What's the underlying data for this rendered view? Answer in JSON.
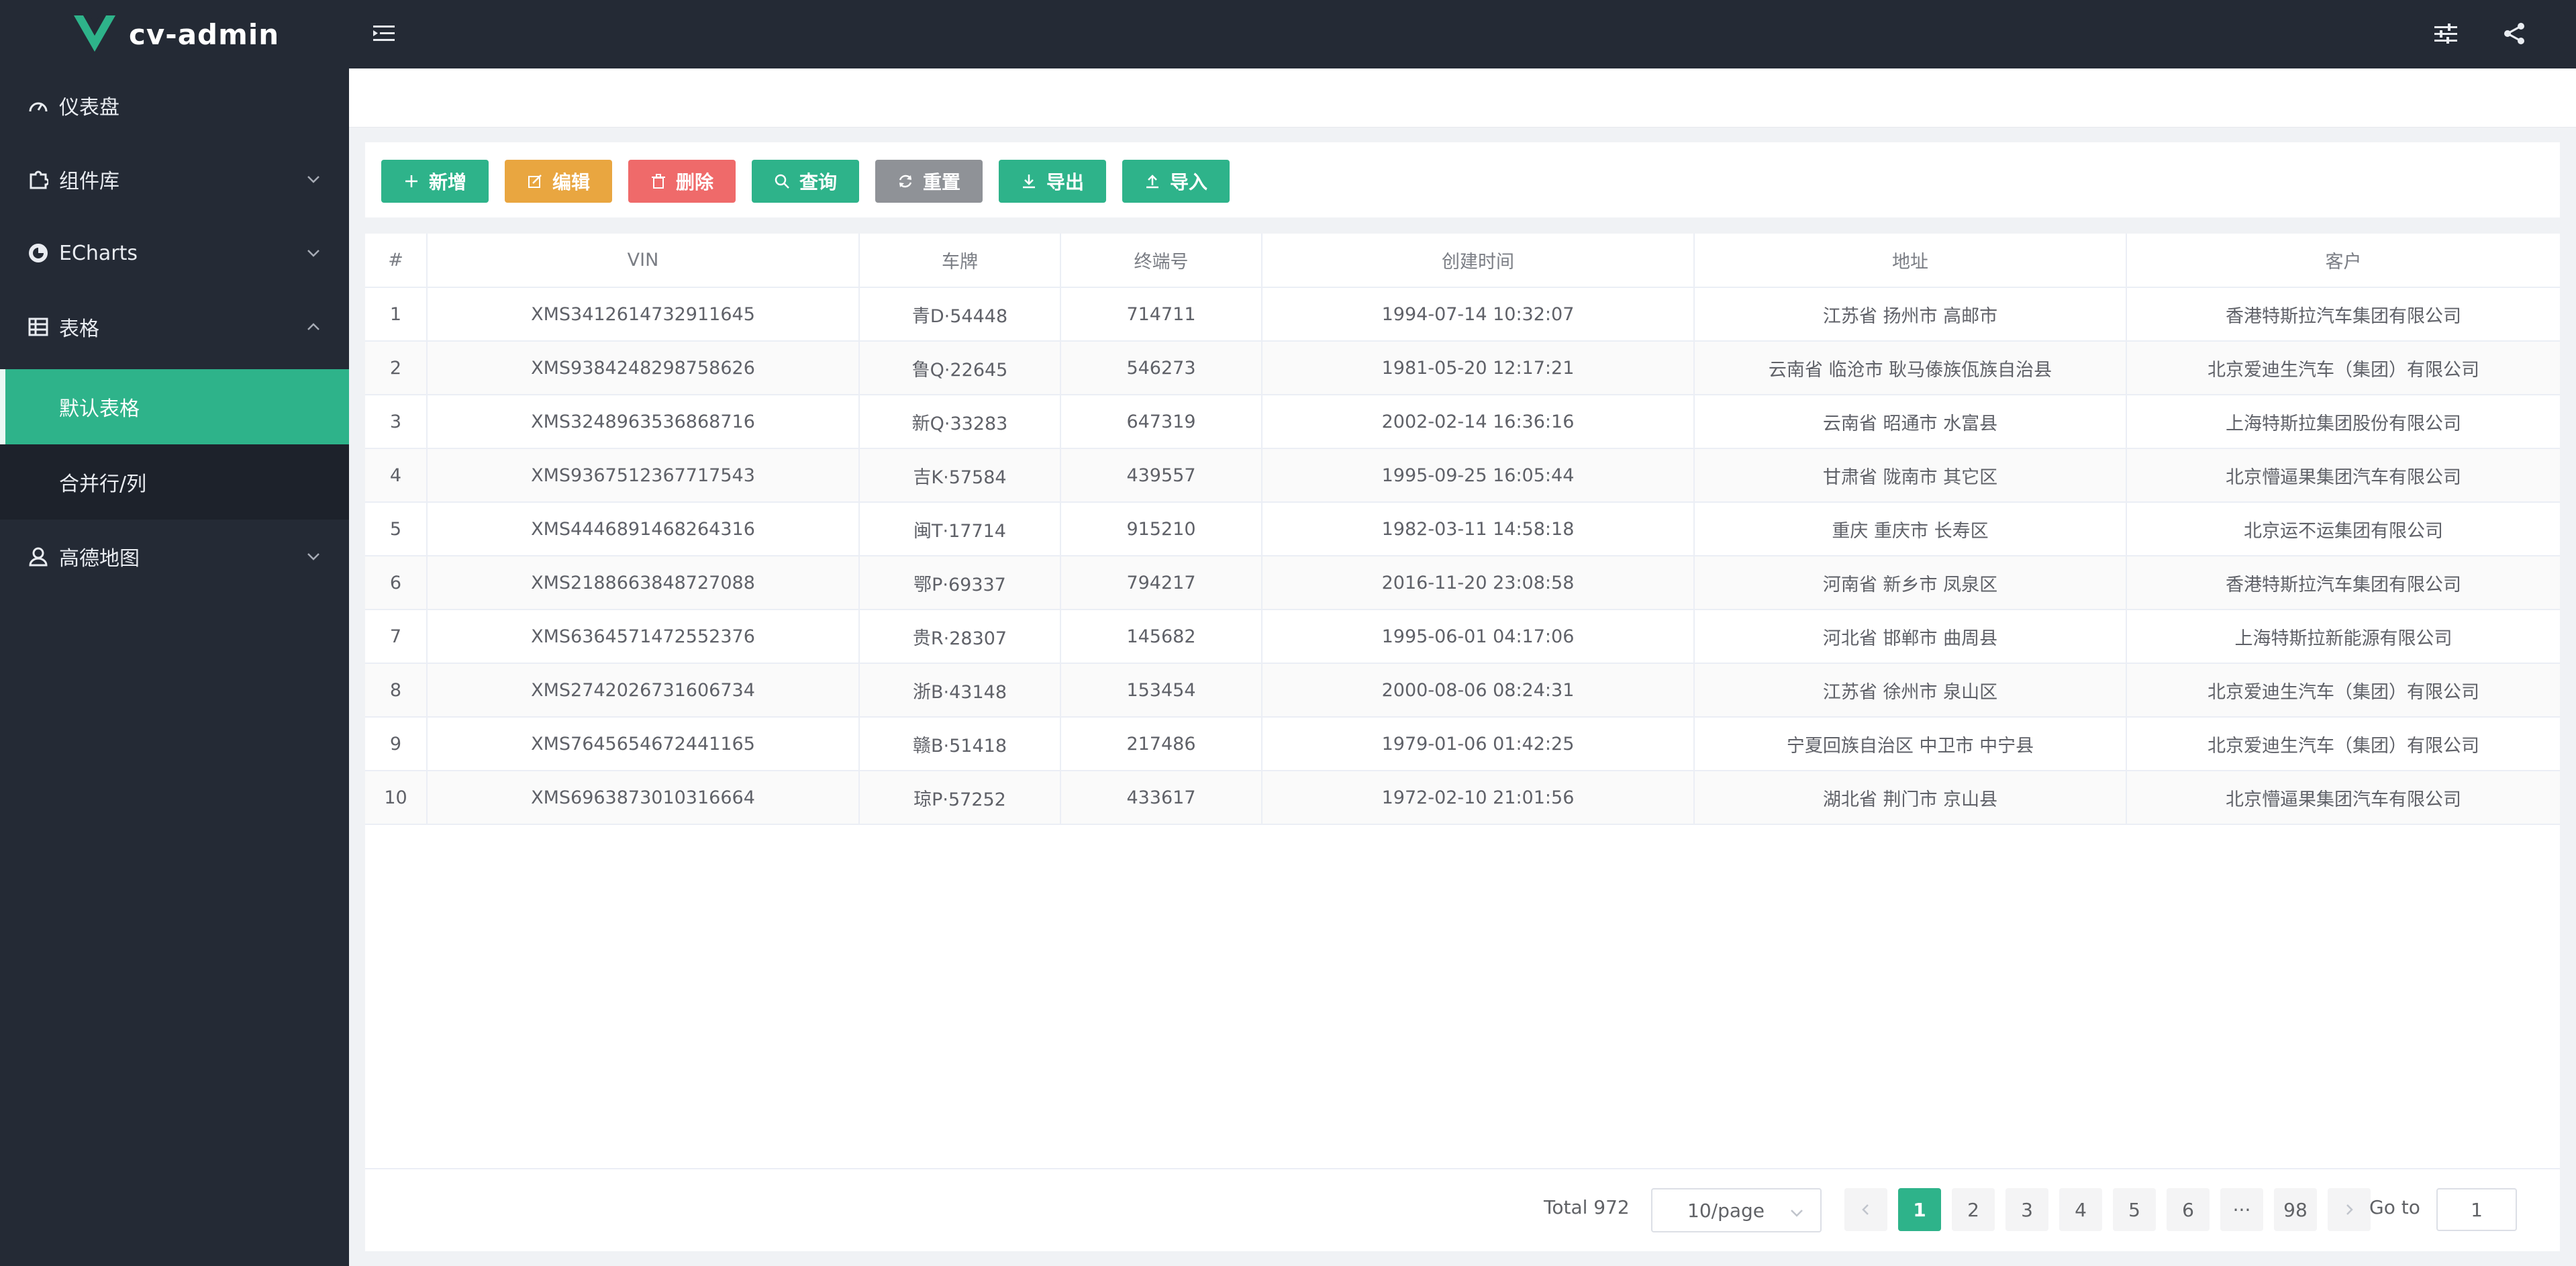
{
  "app": {
    "title": "cv-admin"
  },
  "colors": {
    "accent": "#2eb38a",
    "sidebar_bg": "#242a35",
    "warning": "#e9a640",
    "danger": "#ef6a6a",
    "info": "#8f9297"
  },
  "header": {
    "menu_toggle_icon": "hamburger-fold-icon",
    "settings_icon": "sliders-icon",
    "share_icon": "share-icon"
  },
  "sidebar": {
    "items": [
      {
        "label": "仪表盘",
        "icon": "dashboard-gauge-icon"
      },
      {
        "label": "组件库",
        "icon": "puzzle-icon"
      },
      {
        "label": "ECharts",
        "icon": "echarts-ring-icon"
      },
      {
        "label": "表格",
        "icon": "table-grid-icon"
      },
      {
        "label": "高德地图",
        "icon": "user-map-icon"
      }
    ],
    "table_submenu": [
      {
        "label": "默认表格",
        "active": true
      },
      {
        "label": "合并行/列",
        "active": false
      }
    ]
  },
  "toolbar": {
    "add_label": "新增",
    "edit_label": "编辑",
    "delete_label": "删除",
    "query_label": "查询",
    "reset_label": "重置",
    "export_label": "导出",
    "import_label": "导入"
  },
  "table": {
    "headers": [
      "#",
      "VIN",
      "车牌",
      "终端号",
      "创建时间",
      "地址",
      "客户"
    ],
    "rows": [
      [
        "1",
        "XMS3412614732911645",
        "青D·54448",
        "714711",
        "1994-07-14 10:32:07",
        "江苏省 扬州市 高邮市",
        "香港特斯拉汽车集团有限公司"
      ],
      [
        "2",
        "XMS9384248298758626",
        "鲁Q·22645",
        "546273",
        "1981-05-20 12:17:21",
        "云南省 临沧市 耿马傣族佤族自治县",
        "北京爱迪生汽车（集团）有限公司"
      ],
      [
        "3",
        "XMS3248963536868716",
        "新Q·33283",
        "647319",
        "2002-02-14 16:36:16",
        "云南省 昭通市 水富县",
        "上海特斯拉集团股份有限公司"
      ],
      [
        "4",
        "XMS9367512367717543",
        "吉K·57584",
        "439557",
        "1995-09-25 16:05:44",
        "甘肃省 陇南市 其它区",
        "北京懵逼果集团汽车有限公司"
      ],
      [
        "5",
        "XMS4446891468264316",
        "闽T·17714",
        "915210",
        "1982-03-11 14:58:18",
        "重庆 重庆市 长寿区",
        "北京运不运集团有限公司"
      ],
      [
        "6",
        "XMS2188663848727088",
        "鄂P·69337",
        "794217",
        "2016-11-20 23:08:58",
        "河南省 新乡市 凤泉区",
        "香港特斯拉汽车集团有限公司"
      ],
      [
        "7",
        "XMS6364571472552376",
        "贵R·28307",
        "145682",
        "1995-06-01 04:17:06",
        "河北省 邯郸市 曲周县",
        "上海特斯拉新能源有限公司"
      ],
      [
        "8",
        "XMS2742026731606734",
        "浙B·43148",
        "153454",
        "2000-08-06 08:24:31",
        "江苏省 徐州市 泉山区",
        "北京爱迪生汽车（集团）有限公司"
      ],
      [
        "9",
        "XMS7645654672441165",
        "赣B·51418",
        "217486",
        "1979-01-06 01:42:25",
        "宁夏回族自治区 中卫市 中宁县",
        "北京爱迪生汽车（集团）有限公司"
      ],
      [
        "10",
        "XMS6963873010316664",
        "琼P·57252",
        "433617",
        "1972-02-10 21:01:56",
        "湖北省 荆门市 京山县",
        "北京懵逼果集团汽车有限公司"
      ]
    ]
  },
  "pagination": {
    "total_label": "Total 972",
    "page_size": "10/page",
    "pages": [
      "1",
      "2",
      "3",
      "4",
      "5",
      "6",
      "···",
      "98"
    ],
    "current_page": "1",
    "goto_label": "Go to",
    "goto_value": "1"
  }
}
